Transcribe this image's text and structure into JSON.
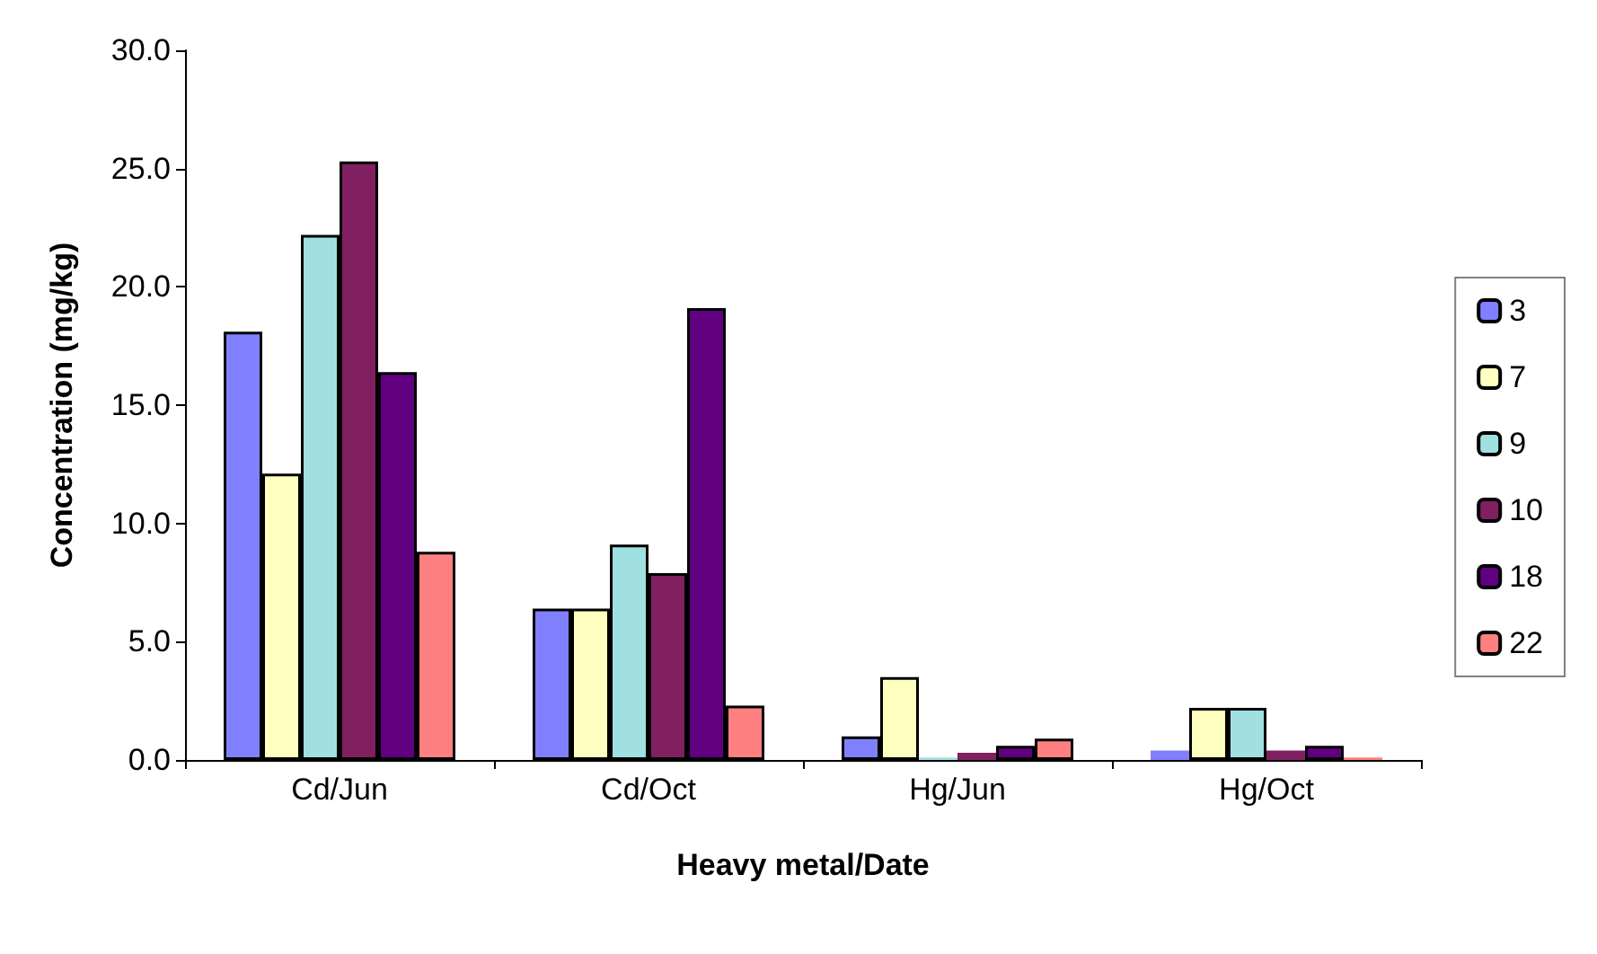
{
  "chart_data": {
    "type": "bar",
    "xlabel": "Heavy metal/Date",
    "ylabel": "Concentration (mg/kg)",
    "categories": [
      "Cd/Jun",
      "Cd/Oct",
      "Hg/Jun",
      "Hg/Oct"
    ],
    "series": [
      {
        "name": "3",
        "color": "#8080ff",
        "values": [
          18.1,
          6.4,
          1.0,
          0.4
        ]
      },
      {
        "name": "7",
        "color": "#ffffc0",
        "values": [
          12.1,
          6.4,
          3.5,
          2.2
        ]
      },
      {
        "name": "9",
        "color": "#a0e0e0",
        "values": [
          22.2,
          9.1,
          0.1,
          2.2
        ]
      },
      {
        "name": "10",
        "color": "#802060",
        "values": [
          25.3,
          7.9,
          0.3,
          0.4
        ]
      },
      {
        "name": "18",
        "color": "#600080",
        "values": [
          16.4,
          19.1,
          0.6,
          0.6
        ]
      },
      {
        "name": "22",
        "color": "#ff8080",
        "values": [
          8.8,
          2.3,
          0.9,
          0.1
        ]
      }
    ],
    "ylim": [
      0,
      30
    ],
    "yticks": [
      {
        "value": 0,
        "label": "0.0"
      },
      {
        "value": 5,
        "label": "5.0"
      },
      {
        "value": 10,
        "label": "10.0"
      },
      {
        "value": 15,
        "label": "15.0"
      },
      {
        "value": 20,
        "label": "20.0"
      },
      {
        "value": 25,
        "label": "25.0"
      },
      {
        "value": 30,
        "label": "30.0"
      }
    ],
    "grid": false,
    "legend": "right"
  }
}
